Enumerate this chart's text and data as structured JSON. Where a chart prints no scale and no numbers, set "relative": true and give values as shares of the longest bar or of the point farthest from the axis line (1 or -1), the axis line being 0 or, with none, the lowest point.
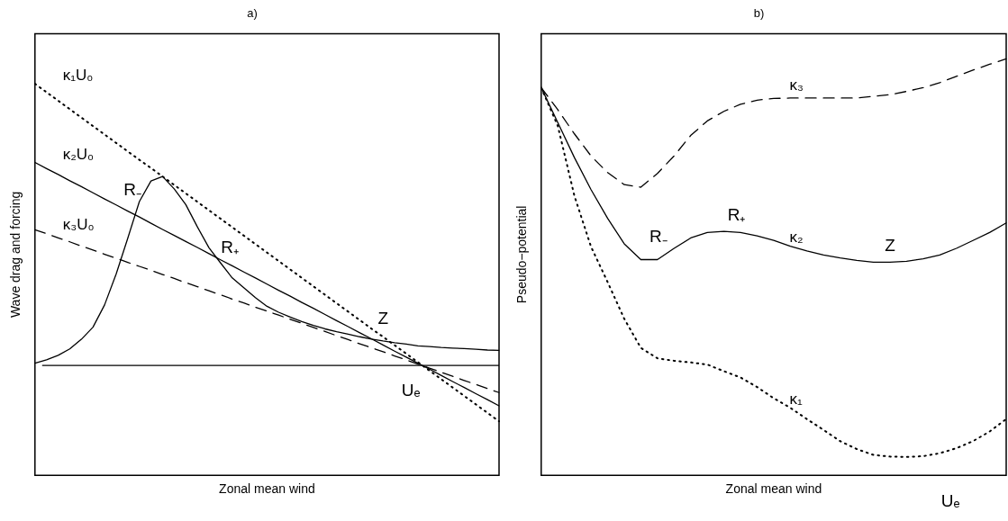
{
  "chart_data": [
    {
      "type": "line",
      "title": "a)",
      "xlabel": "Zonal mean wind",
      "ylabel": "Wave drag and forcing",
      "relative": true,
      "categories": [
        null,
        null,
        null,
        null,
        null,
        null,
        null,
        null,
        null,
        null,
        null,
        null,
        null,
        null,
        null,
        null,
        null,
        null,
        null,
        null,
        null,
        null,
        null,
        null,
        null,
        null,
        null,
        null,
        null,
        null,
        null,
        null,
        null,
        null,
        null,
        null,
        null,
        null,
        null,
        null,
        null
      ],
      "series": [
        {
          "name": "κ₁U₀",
          "color": "#000000",
          "line_style": "dotted",
          "values": [
            1.0,
            0.97,
            0.94,
            0.91,
            0.88,
            0.85,
            0.82,
            0.79,
            0.76,
            0.73,
            0.701,
            0.671,
            0.641,
            0.611,
            0.581,
            0.551,
            0.521,
            0.491,
            0.461,
            0.431,
            0.401,
            0.371,
            0.341,
            0.311,
            0.281,
            0.251,
            0.221,
            0.191,
            0.161,
            0.131,
            0.102,
            0.072,
            0.042,
            0.012,
            -0.018,
            -0.048,
            -0.078,
            -0.108,
            -0.138,
            -0.168,
            -0.198
          ]
        },
        {
          "name": "κ₂U₀",
          "color": "#000000",
          "line_style": "solid",
          "values": [
            0.721,
            0.699,
            0.678,
            0.656,
            0.635,
            0.613,
            0.591,
            0.57,
            0.548,
            0.527,
            0.505,
            0.483,
            0.462,
            0.44,
            0.419,
            0.397,
            0.375,
            0.354,
            0.332,
            0.311,
            0.289,
            0.267,
            0.246,
            0.224,
            0.203,
            0.181,
            0.159,
            0.138,
            0.116,
            0.095,
            0.073,
            0.051,
            0.03,
            0.008,
            -0.013,
            -0.035,
            -0.057,
            -0.078,
            -0.1,
            -0.121,
            -0.143
          ]
        },
        {
          "name": "κ₃U₀",
          "color": "#000000",
          "line_style": "dashed",
          "values": [
            0.482,
            0.468,
            0.453,
            0.439,
            0.424,
            0.41,
            0.395,
            0.381,
            0.366,
            0.352,
            0.338,
            0.323,
            0.309,
            0.294,
            0.28,
            0.265,
            0.251,
            0.236,
            0.222,
            0.207,
            0.193,
            0.179,
            0.164,
            0.15,
            0.135,
            0.121,
            0.106,
            0.092,
            0.077,
            0.063,
            0.049,
            0.034,
            0.02,
            0.005,
            -0.009,
            -0.024,
            -0.038,
            -0.053,
            -0.067,
            -0.082,
            -0.096
          ]
        },
        {
          "color": "#000000",
          "line_style": "solid",
          "values": [
            0.008,
            0.02,
            0.036,
            0.059,
            0.093,
            0.136,
            0.215,
            0.325,
            0.452,
            0.582,
            0.655,
            0.671,
            0.627,
            0.571,
            0.492,
            0.418,
            0.364,
            0.311,
            0.276,
            0.241,
            0.21,
            0.189,
            0.172,
            0.156,
            0.142,
            0.13,
            0.12,
            0.111,
            0.102,
            0.094,
            0.087,
            0.081,
            0.076,
            0.07,
            0.067,
            0.064,
            0.062,
            0.06,
            0.058,
            0.055,
            0.054
          ]
        }
      ],
      "ref_lines": [
        {
          "axis": "y",
          "value": 0,
          "color": "#000000",
          "line_style": "solid"
        }
      ],
      "annotations": [
        "R₋",
        "R₊",
        "Z",
        "Uₑ"
      ]
    },
    {
      "type": "line",
      "title": "b)",
      "xlabel": "Zonal mean wind",
      "ylabel": "Pseudo−potential",
      "relative": true,
      "categories": [
        null,
        null,
        null,
        null,
        null,
        null,
        null,
        null,
        null,
        null,
        null,
        null,
        null,
        null,
        null,
        null,
        null,
        null,
        null,
        null,
        null,
        null,
        null,
        null,
        null,
        null,
        null,
        null,
        null
      ],
      "series": [
        {
          "name": "κ₃",
          "color": "#000000",
          "line_style": "dashed",
          "values": [
            0.931,
            0.878,
            0.82,
            0.767,
            0.727,
            0.698,
            0.692,
            0.725,
            0.767,
            0.816,
            0.851,
            0.874,
            0.891,
            0.901,
            0.905,
            0.906,
            0.906,
            0.906,
            0.906,
            0.906,
            0.91,
            0.914,
            0.922,
            0.931,
            0.943,
            0.958,
            0.973,
            0.987,
            1.0
          ]
        },
        {
          "name": "κ₂",
          "color": "#000000",
          "line_style": "solid",
          "values": [
            0.931,
            0.847,
            0.763,
            0.686,
            0.617,
            0.556,
            0.518,
            0.518,
            0.545,
            0.57,
            0.583,
            0.586,
            0.583,
            0.575,
            0.564,
            0.55,
            0.539,
            0.529,
            0.522,
            0.516,
            0.512,
            0.512,
            0.514,
            0.52,
            0.529,
            0.545,
            0.564,
            0.583,
            0.606
          ]
        },
        {
          "name": "κ₁",
          "color": "#000000",
          "line_style": "dotted",
          "values": [
            0.931,
            0.839,
            0.671,
            0.549,
            0.464,
            0.376,
            0.306,
            0.281,
            0.275,
            0.271,
            0.266,
            0.25,
            0.235,
            0.212,
            0.185,
            0.162,
            0.135,
            0.109,
            0.082,
            0.063,
            0.049,
            0.045,
            0.044,
            0.046,
            0.053,
            0.065,
            0.082,
            0.105,
            0.135
          ]
        }
      ],
      "annotations": [
        "R₋",
        "R₊",
        "Z",
        "Uₑ"
      ]
    }
  ]
}
